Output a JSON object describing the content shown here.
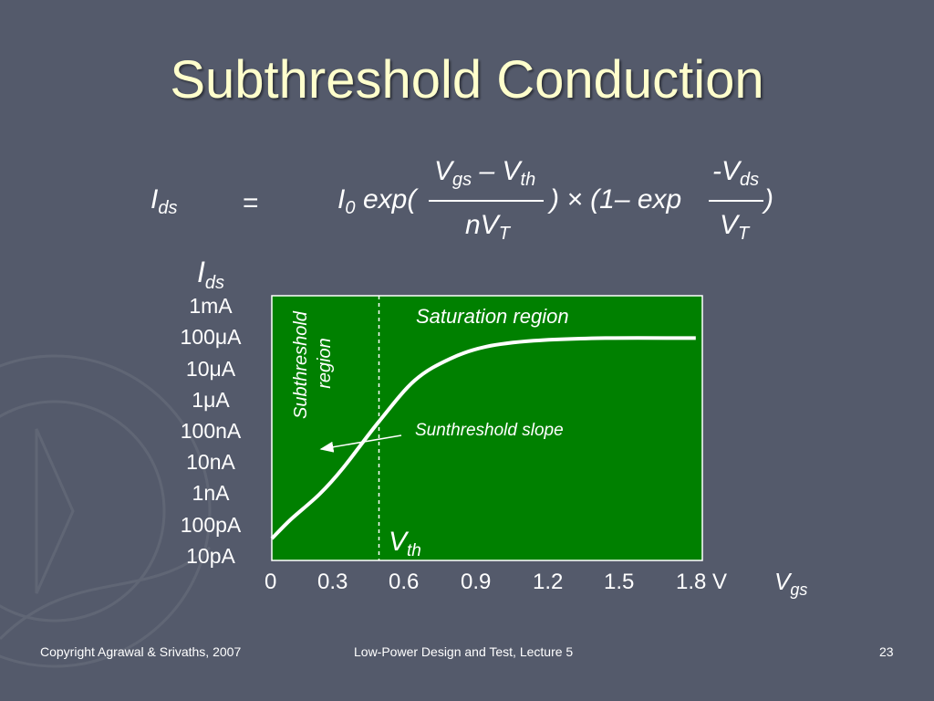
{
  "slide": {
    "title": "Subthreshold Conduction",
    "equation": {
      "lhs": "I",
      "lhs_sub": "ds",
      "equals": "=",
      "i0": "I",
      "i0_sub": "0",
      "exp_open": "exp(",
      "frac1_num_v": "V",
      "frac1_num_sub1": "gs",
      "frac1_num_mid": " – V",
      "frac1_num_sub2": "th",
      "frac1_den": "nV",
      "frac1_den_sub": "T",
      "mid_text": ") × (1– exp",
      "frac2_num": "-V",
      "frac2_num_sub": "ds",
      "frac2_den": "V",
      "frac2_den_sub": "T",
      "close": ")"
    },
    "footer": {
      "left": "Copyright Agrawal & Srivaths, 2007",
      "center": "Low-Power Design and Test, Lecture 5",
      "page": "23"
    }
  },
  "chart_data": {
    "type": "line",
    "background_color": "#008000",
    "line_color": "#ffffff",
    "y_axis": {
      "label": "I",
      "label_sub": "ds",
      "scale": "log",
      "ticks": [
        "1mA",
        "100μA",
        "10μA",
        "1μA",
        "100nA",
        "10nA",
        "1nA",
        "100pA",
        "10pA"
      ]
    },
    "x_axis": {
      "label": "V",
      "label_sub": "gs",
      "ticks": [
        "0",
        "0.3",
        "0.6",
        "0.9",
        "1.2",
        "1.5",
        "1.8 V"
      ],
      "tick_values": [
        0,
        0.3,
        0.6,
        0.9,
        1.2,
        1.5,
        1.8
      ],
      "xlim": [
        0,
        1.8
      ]
    },
    "curve_points": [
      {
        "x": 0.0,
        "y": 0.33
      },
      {
        "x": 0.08,
        "y": 0.62
      },
      {
        "x": 0.2,
        "y": 1.0
      },
      {
        "x": 0.3,
        "y": 1.4
      },
      {
        "x": 0.45,
        "y": 2.1
      },
      {
        "x": 0.6,
        "y": 2.72
      },
      {
        "x": 0.75,
        "y": 3.05
      },
      {
        "x": 0.9,
        "y": 3.23
      },
      {
        "x": 1.1,
        "y": 3.32
      },
      {
        "x": 1.4,
        "y": 3.36
      },
      {
        "x": 1.78,
        "y": 3.36
      }
    ],
    "threshold": {
      "x": 0.45,
      "label": "V",
      "label_sub": "th"
    },
    "annotations": {
      "saturation": "Saturation region",
      "subthreshold_line1": "Subthreshold",
      "subthreshold_line2": "region",
      "slope": "Sunthreshold slope",
      "slope_arrow_to": {
        "x": 0.2,
        "y": 1.0
      }
    }
  }
}
